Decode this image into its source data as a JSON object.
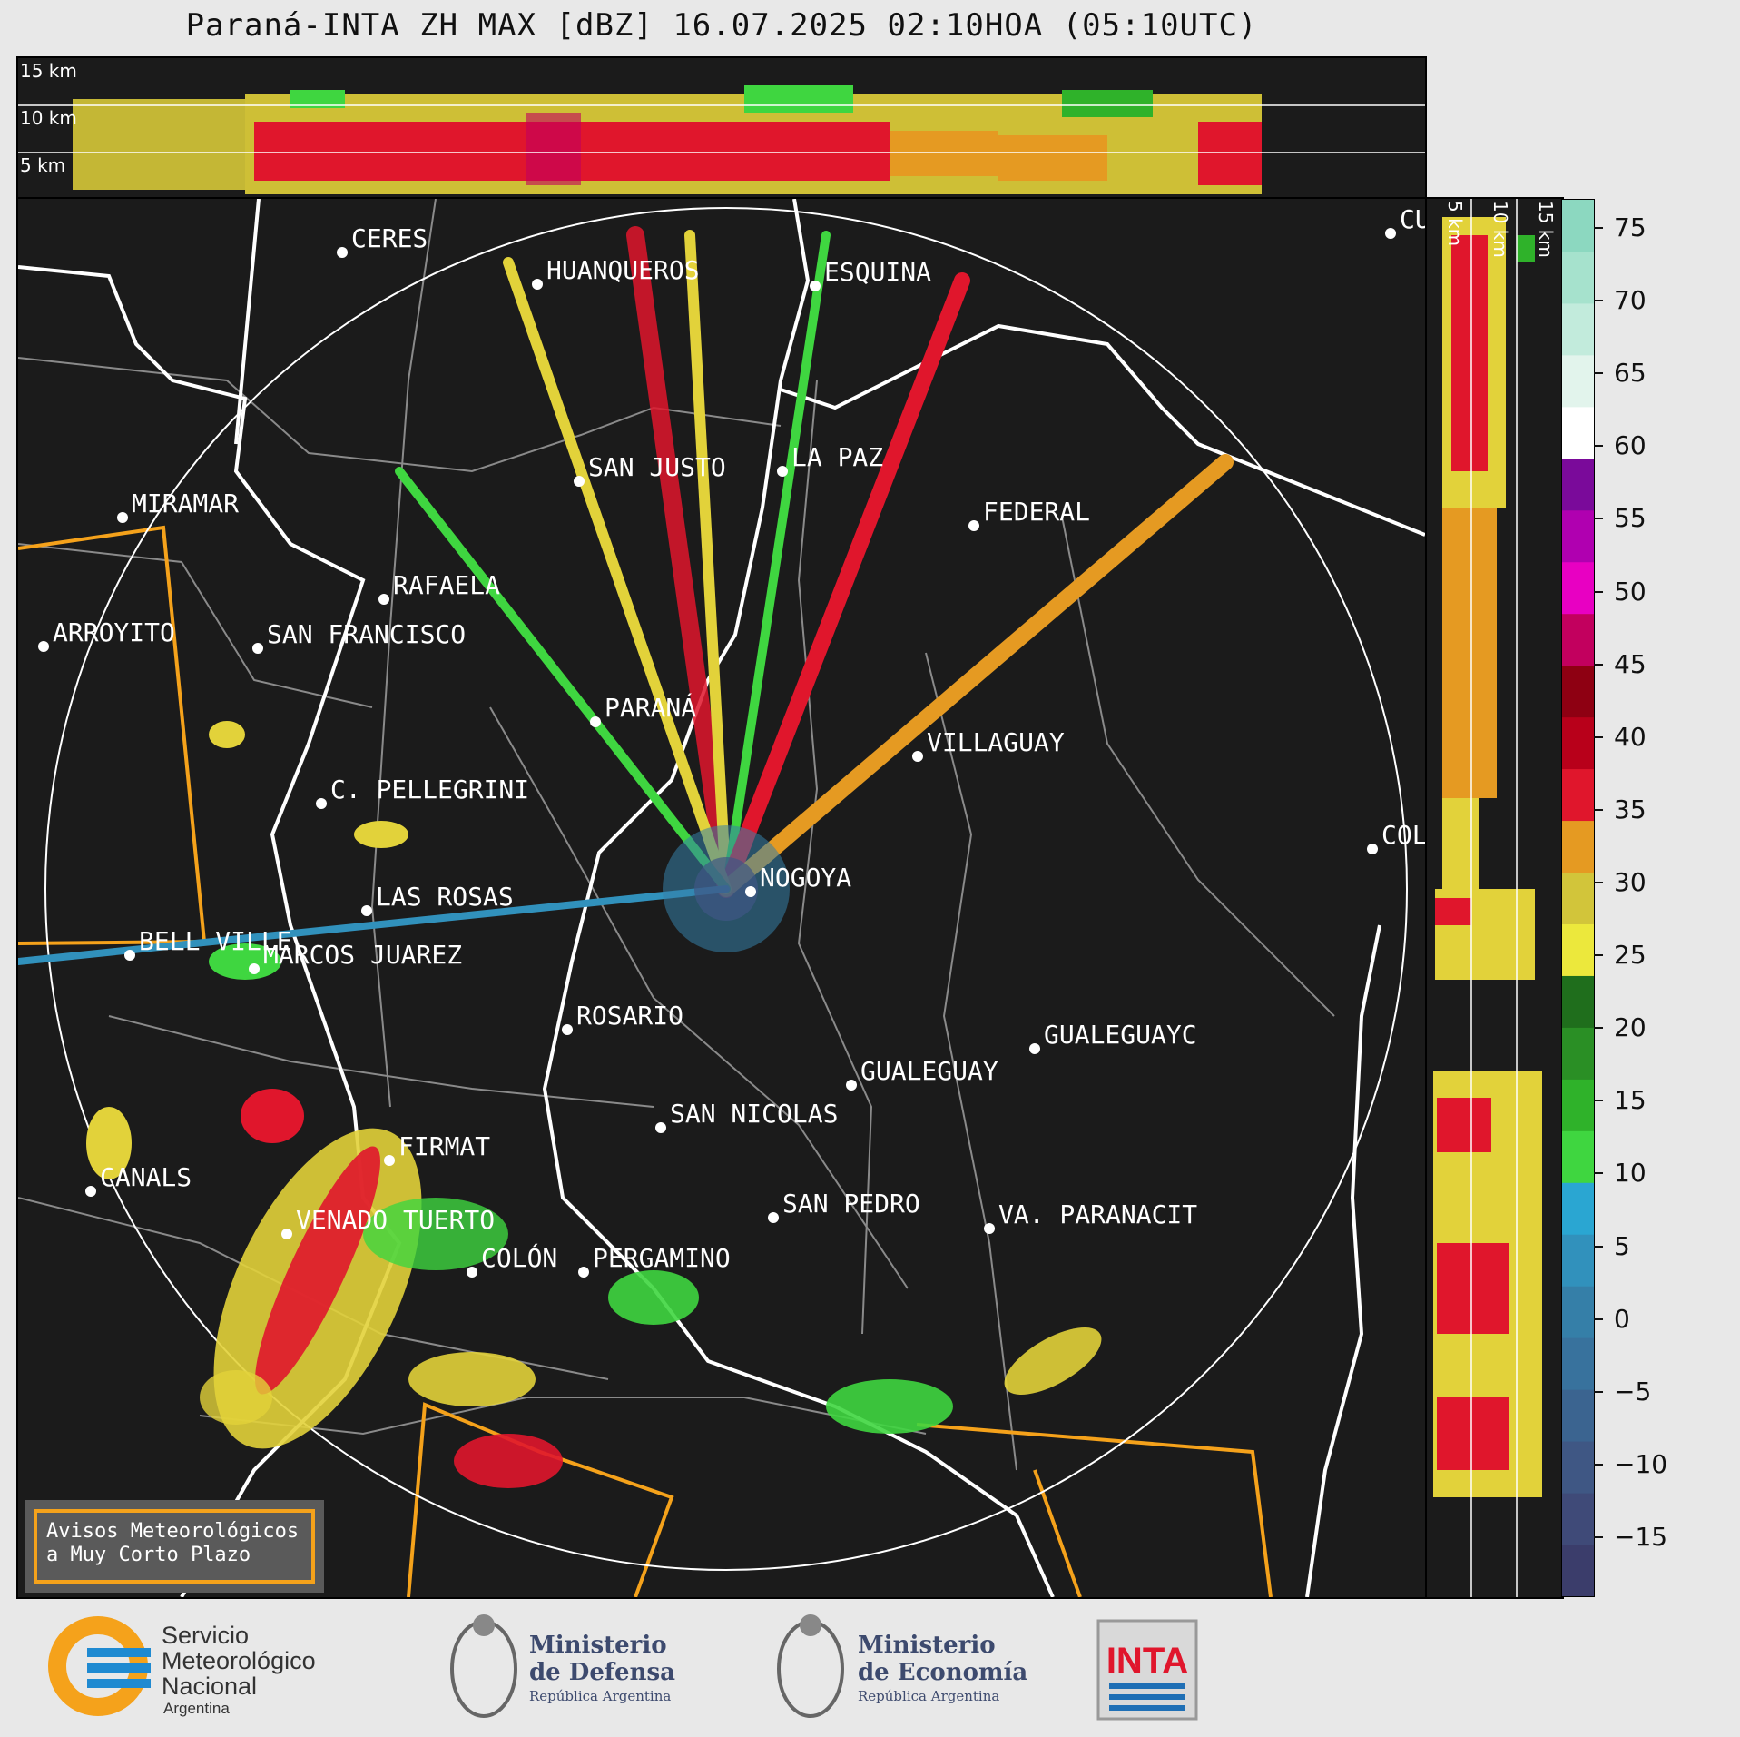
{
  "title": "Paraná-INTA ZH MAX [dBZ] 16.07.2025 02:10HOA (05:10UTC)",
  "top_profile": {
    "height_labels": [
      "15 km",
      "10 km",
      "5 km"
    ]
  },
  "side_profile": {
    "height_labels": [
      "5 km",
      "10 km",
      "15 km"
    ]
  },
  "cities": [
    {
      "name": "CERES"
    },
    {
      "name": "HUANQUEROS"
    },
    {
      "name": "ESQUINA"
    },
    {
      "name": "CU"
    },
    {
      "name": "SAN JUSTO"
    },
    {
      "name": "LA PAZ"
    },
    {
      "name": "FEDERAL"
    },
    {
      "name": "MIRAMAR"
    },
    {
      "name": "RAFAELA"
    },
    {
      "name": "ARROYITO"
    },
    {
      "name": "SAN FRANCISCO"
    },
    {
      "name": "PARANÁ"
    },
    {
      "name": "VILLAGUAY"
    },
    {
      "name": "C. PELLEGRINI"
    },
    {
      "name": "COLÓ"
    },
    {
      "name": "NOGOYA"
    },
    {
      "name": "LAS ROSAS"
    },
    {
      "name": "BELL VILLE"
    },
    {
      "name": "MARCOS JUAREZ"
    },
    {
      "name": "ROSARIO"
    },
    {
      "name": "GUALEGUAYC"
    },
    {
      "name": "GUALEGUAY"
    },
    {
      "name": "SAN NICOLAS"
    },
    {
      "name": "FIRMAT"
    },
    {
      "name": "CANALS"
    },
    {
      "name": "SAN PEDRO"
    },
    {
      "name": "VENADO TUERTO"
    },
    {
      "name": "VA. PARANACIT"
    },
    {
      "name": "COLÓN"
    },
    {
      "name": "PERGAMINO"
    }
  ],
  "colorbar": {
    "unit": "dBZ",
    "min": -19,
    "max": 77,
    "ticks": [
      "75",
      "70",
      "65",
      "60",
      "55",
      "50",
      "45",
      "40",
      "35",
      "30",
      "25",
      "20",
      "15",
      "10",
      "5",
      "0",
      "−5",
      "−10",
      "−15"
    ],
    "tick_values": [
      75,
      70,
      65,
      60,
      55,
      50,
      45,
      40,
      35,
      30,
      25,
      20,
      15,
      10,
      5,
      0,
      -5,
      -10,
      -15
    ],
    "colors": [
      "#3b3d6b",
      "#3f4a78",
      "#3f5784",
      "#3b6490",
      "#38729d",
      "#357fa8",
      "#3191bc",
      "#2aa6d2",
      "#3fd640",
      "#2fb22a",
      "#2a8f25",
      "#1f6e1c",
      "#ece83c",
      "#d2c53a",
      "#e59a22",
      "#e0162c",
      "#b8001a",
      "#8e0012",
      "#c2005e",
      "#e800c2",
      "#b000b0",
      "#7a0a9a",
      "#ffffff",
      "#e2f4ec",
      "#c2ebdc",
      "#a6e2cd",
      "#8cd8c0"
    ]
  },
  "warning_box": {
    "text": "Avisos Meteorológicos\na Muy Corto Plazo",
    "border_color": "#f5a21b"
  },
  "logos": {
    "smn": {
      "lines": [
        "Servicio",
        "Meteorológico",
        "Nacional"
      ],
      "sub": "Argentina"
    },
    "defensa": {
      "lines": [
        "Ministerio",
        "de Defensa"
      ],
      "sub": "República Argentina"
    },
    "economia": {
      "lines": [
        "Ministerio",
        "de Economía"
      ],
      "sub": "República Argentina"
    },
    "inta": {
      "text": "INTA"
    }
  }
}
